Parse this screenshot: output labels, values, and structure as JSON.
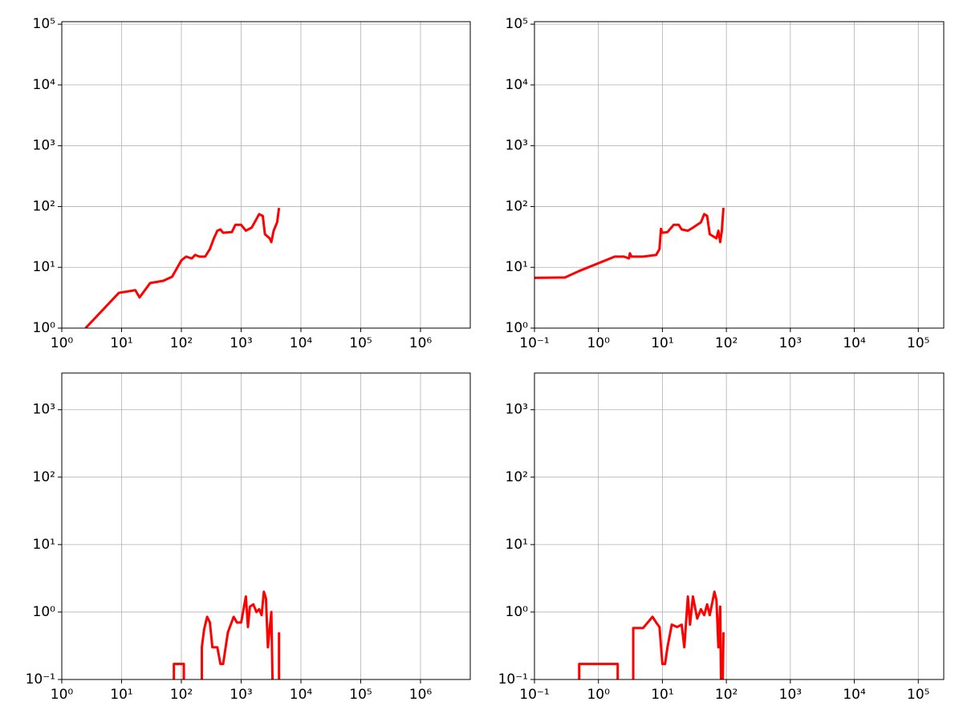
{
  "chart_data": [
    {
      "type": "line",
      "xscale": "log",
      "yscale": "log",
      "grid": true,
      "xlim": [
        1,
        6800000
      ],
      "ylim": [
        1,
        110000
      ],
      "xticks": [
        {
          "value": 1,
          "label": "10⁰"
        },
        {
          "value": 10,
          "label": "10¹"
        },
        {
          "value": 100,
          "label": "10²"
        },
        {
          "value": 1000,
          "label": "10³"
        },
        {
          "value": 10000,
          "label": "10⁴"
        },
        {
          "value": 100000,
          "label": "10⁵"
        },
        {
          "value": 1000000,
          "label": "10⁶"
        }
      ],
      "yticks": [
        {
          "value": 1,
          "label": "10⁰"
        },
        {
          "value": 10,
          "label": "10¹"
        },
        {
          "value": 100,
          "label": "10²"
        },
        {
          "value": 1000,
          "label": "10³"
        },
        {
          "value": 10000,
          "label": "10⁴"
        },
        {
          "value": 100000,
          "label": "10⁵"
        }
      ],
      "x": [
        2.5,
        9,
        17,
        20,
        30,
        50,
        70,
        100,
        120,
        150,
        170,
        200,
        250,
        300,
        350,
        400,
        450,
        500,
        700,
        800,
        1000,
        1200,
        1500,
        2000,
        2300,
        2500,
        3000,
        3200,
        3500,
        4000,
        4300
      ],
      "series": [
        {
          "color": "#ff0000",
          "values": [
            1,
            3.8,
            4.2,
            3.2,
            5.5,
            6,
            7,
            13,
            15,
            14,
            16,
            15,
            15,
            20,
            30,
            40,
            42,
            37,
            38,
            50,
            50,
            40,
            45,
            75,
            70,
            35,
            30,
            26,
            40,
            55,
            95
          ]
        }
      ]
    },
    {
      "type": "line",
      "xscale": "log",
      "yscale": "log",
      "grid": true,
      "xlim": [
        0.1,
        250000
      ],
      "ylim": [
        1,
        110000
      ],
      "xticks": [
        {
          "value": 0.1,
          "label": "10⁻¹"
        },
        {
          "value": 1,
          "label": "10⁰"
        },
        {
          "value": 10,
          "label": "10¹"
        },
        {
          "value": 100,
          "label": "10²"
        },
        {
          "value": 1000,
          "label": "10³"
        },
        {
          "value": 10000,
          "label": "10⁴"
        },
        {
          "value": 100000,
          "label": "10⁵"
        }
      ],
      "yticks": [
        {
          "value": 1,
          "label": "10⁰"
        },
        {
          "value": 10,
          "label": "10¹"
        },
        {
          "value": 100,
          "label": "10²"
        },
        {
          "value": 1000,
          "label": "10³"
        },
        {
          "value": 10000,
          "label": "10⁴"
        },
        {
          "value": 100000,
          "label": "10⁵"
        }
      ],
      "x": [
        0.1,
        0.3,
        0.5,
        1.8,
        2.5,
        3,
        3.1,
        3.3,
        5,
        8,
        9,
        9.5,
        10,
        12,
        15,
        18,
        20,
        25,
        30,
        40,
        45,
        50,
        55,
        70,
        75,
        80,
        85,
        90
      ],
      "series": [
        {
          "color": "#ff0000",
          "values": [
            6.7,
            6.8,
            8.7,
            15,
            15,
            14,
            17,
            15,
            15,
            16,
            20,
            43,
            37,
            38,
            50,
            50,
            42,
            40,
            45,
            55,
            75,
            70,
            35,
            30,
            40,
            26,
            40,
            95
          ]
        }
      ]
    },
    {
      "type": "line",
      "xscale": "log",
      "yscale": "log",
      "grid": true,
      "xlim": [
        1,
        6800000
      ],
      "ylim": [
        0.1,
        3500
      ],
      "xticks": [
        {
          "value": 1,
          "label": "10⁰"
        },
        {
          "value": 10,
          "label": "10¹"
        },
        {
          "value": 100,
          "label": "10²"
        },
        {
          "value": 1000,
          "label": "10³"
        },
        {
          "value": 10000,
          "label": "10⁴"
        },
        {
          "value": 100000,
          "label": "10⁵"
        },
        {
          "value": 1000000,
          "label": "10⁶"
        }
      ],
      "yticks": [
        {
          "value": 0.1,
          "label": "10⁻¹"
        },
        {
          "value": 1,
          "label": "10⁰"
        },
        {
          "value": 10,
          "label": "10¹"
        },
        {
          "value": 100,
          "label": "10²"
        },
        {
          "value": 1000,
          "label": "10³"
        }
      ],
      "x": [
        75,
        75,
        110,
        110,
        null,
        220,
        220,
        240,
        270,
        300,
        330,
        400,
        450,
        500,
        600,
        750,
        850,
        1000,
        1200,
        1300,
        1400,
        1600,
        1800,
        2000,
        2200,
        2400,
        2600,
        2800,
        3200,
        3500,
        null,
        4300,
        4300
      ],
      "series": [
        {
          "color": "#ff0000",
          "values": [
            0.01,
            0.17,
            0.17,
            0.01,
            null,
            0.01,
            0.3,
            0.55,
            0.85,
            0.7,
            0.3,
            0.3,
            0.17,
            0.17,
            0.5,
            0.85,
            0.7,
            0.7,
            1.7,
            0.6,
            1.2,
            1.3,
            1.0,
            1.1,
            0.9,
            2.0,
            1.6,
            0.3,
            1.0,
            0.01,
            null,
            0.01,
            0.5
          ]
        }
      ]
    },
    {
      "type": "line",
      "xscale": "log",
      "yscale": "log",
      "grid": true,
      "xlim": [
        0.1,
        250000
      ],
      "ylim": [
        0.1,
        3500
      ],
      "xticks": [
        {
          "value": 0.1,
          "label": "10⁻¹"
        },
        {
          "value": 1,
          "label": "10⁰"
        },
        {
          "value": 10,
          "label": "10¹"
        },
        {
          "value": 100,
          "label": "10²"
        },
        {
          "value": 1000,
          "label": "10³"
        },
        {
          "value": 10000,
          "label": "10⁴"
        },
        {
          "value": 100000,
          "label": "10⁵"
        }
      ],
      "yticks": [
        {
          "value": 0.1,
          "label": "10⁻¹"
        },
        {
          "value": 1,
          "label": "10⁰"
        },
        {
          "value": 10,
          "label": "10¹"
        },
        {
          "value": 100,
          "label": "10²"
        },
        {
          "value": 1000,
          "label": "10³"
        }
      ],
      "x": [
        0.5,
        0.5,
        2,
        2,
        null,
        3.5,
        3.5,
        5,
        7,
        8,
        9,
        10,
        11,
        12,
        14,
        17,
        20,
        22,
        25,
        27,
        30,
        35,
        40,
        45,
        50,
        55,
        65,
        70,
        75,
        80,
        85,
        90
      ],
      "series": [
        {
          "color": "#ff0000",
          "values": [
            0.01,
            0.17,
            0.17,
            0.01,
            null,
            0.01,
            0.58,
            0.58,
            0.85,
            0.7,
            0.6,
            0.17,
            0.17,
            0.3,
            0.65,
            0.6,
            0.65,
            0.3,
            1.7,
            0.65,
            1.7,
            0.8,
            1.1,
            0.9,
            1.3,
            0.9,
            2.0,
            1.5,
            0.3,
            1.2,
            0.01,
            0.5
          ]
        }
      ]
    }
  ]
}
